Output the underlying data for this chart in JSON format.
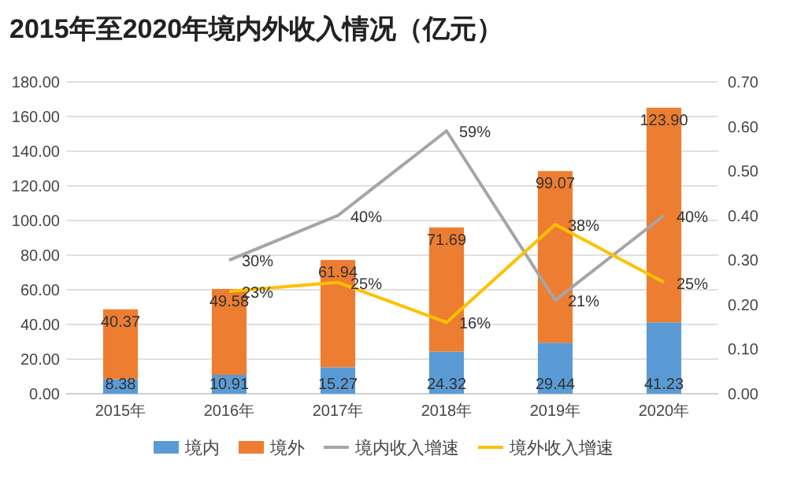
{
  "chart_data": {
    "type": "bar",
    "title": "2015年至2020年境内外收入情况（亿元）",
    "categories": [
      "2015年",
      "2016年",
      "2017年",
      "2018年",
      "2019年",
      "2020年"
    ],
    "stacked": true,
    "series": [
      {
        "name": "境内",
        "color": "#5b9bd5",
        "values": [
          8.38,
          10.91,
          15.27,
          24.32,
          29.44,
          41.23
        ],
        "value_labels": [
          "8.38",
          "10.91",
          "15.27",
          "24.32",
          "29.44",
          "41.23"
        ]
      },
      {
        "name": "境外",
        "color": "#ed7d31",
        "values": [
          40.37,
          49.58,
          61.94,
          71.69,
          99.07,
          123.9
        ],
        "value_labels": [
          "40.37",
          "49.58",
          "61.94",
          "71.69",
          "99.07",
          "123.90"
        ]
      },
      {
        "name": "境内收入增速",
        "type": "line",
        "axis": "y2",
        "color": "#a5a5a5",
        "values": [
          null,
          0.3,
          0.4,
          0.59,
          0.21,
          0.4
        ],
        "value_labels": [
          null,
          "30%",
          "40%",
          "59%",
          "21%",
          "40%"
        ]
      },
      {
        "name": "境外收入增速",
        "type": "line",
        "axis": "y2",
        "color": "#ffc000",
        "values": [
          null,
          0.23,
          0.25,
          0.16,
          0.38,
          0.25
        ],
        "value_labels": [
          null,
          "23%",
          "25%",
          "16%",
          "38%",
          "25%"
        ]
      }
    ],
    "ylim": [
      0,
      180
    ],
    "yticks": [
      {
        "value": 0,
        "label": "0.00"
      },
      {
        "value": 20,
        "label": "20.00"
      },
      {
        "value": 40,
        "label": "40.00"
      },
      {
        "value": 60,
        "label": "60.00"
      },
      {
        "value": 80,
        "label": "80.00"
      },
      {
        "value": 100,
        "label": "100.00"
      },
      {
        "value": 120,
        "label": "120.00"
      },
      {
        "value": 140,
        "label": "140.00"
      },
      {
        "value": 160,
        "label": "160.00"
      },
      {
        "value": 180,
        "label": "180.00"
      }
    ],
    "y2lim": [
      0,
      0.7
    ],
    "y2ticks": [
      {
        "value": 0,
        "label": "0.00"
      },
      {
        "value": 0.1,
        "label": "0.10"
      },
      {
        "value": 0.2,
        "label": "0.20"
      },
      {
        "value": 0.3,
        "label": "0.30"
      },
      {
        "value": 0.4,
        "label": "0.40"
      },
      {
        "value": 0.5,
        "label": "0.50"
      },
      {
        "value": 0.6,
        "label": "0.60"
      },
      {
        "value": 0.7,
        "label": "0.70"
      }
    ],
    "grid": "y",
    "legend": "bottom"
  }
}
